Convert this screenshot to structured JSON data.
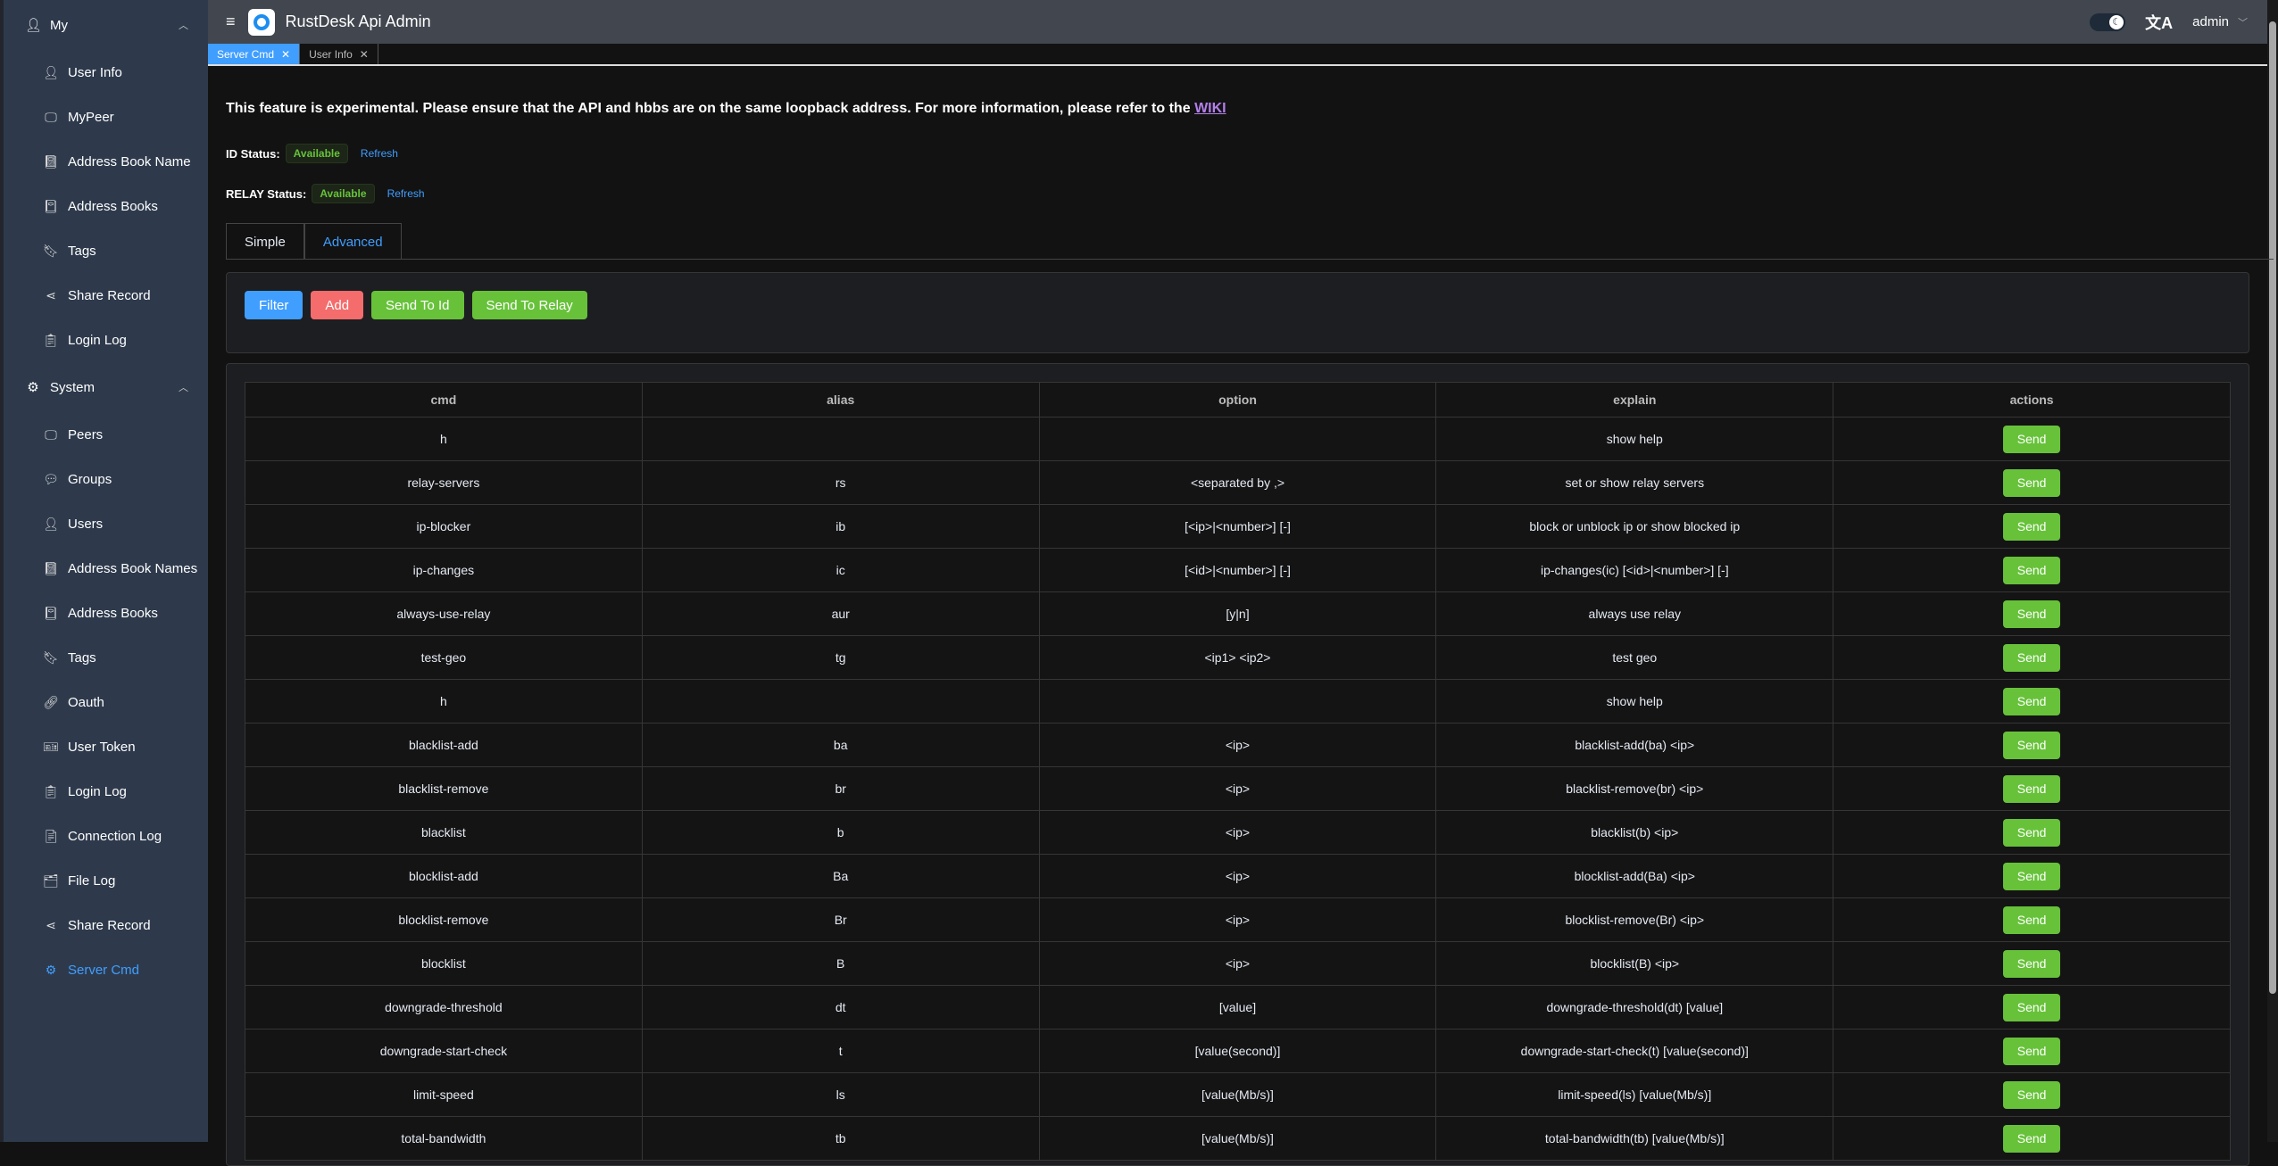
{
  "app": {
    "title": "RustDesk Api Admin",
    "user": "admin"
  },
  "sidebar": {
    "my": {
      "label": "My",
      "items": [
        "User Info",
        "MyPeer",
        "Address Book Name",
        "Address Books",
        "Tags",
        "Share Record",
        "Login Log"
      ]
    },
    "system": {
      "label": "System",
      "items": [
        "Peers",
        "Groups",
        "Users",
        "Address Book Names",
        "Address Books",
        "Tags",
        "Oauth",
        "User Token",
        "Login Log",
        "Connection Log",
        "File Log",
        "Share Record",
        "Server Cmd"
      ]
    },
    "active": "Server Cmd"
  },
  "page_tabs": [
    "Server Cmd",
    "User Info"
  ],
  "main": {
    "warning": "This feature is experimental. Please ensure that the API and hbbs are on the same loopback address. For more information, please refer to the",
    "wiki_link": "WIKI",
    "id_status_label": "ID Status:",
    "id_status": "Available",
    "relay_status_label": "RELAY Status:",
    "relay_status": "Available",
    "refresh": "Refresh",
    "tabs": [
      "Simple",
      "Advanced"
    ],
    "active_tab": "Advanced",
    "buttons": {
      "filter": "Filter",
      "add": "Add",
      "send_to_id": "Send To Id",
      "send_to_relay": "Send To Relay"
    },
    "table": {
      "columns": [
        "cmd",
        "alias",
        "option",
        "explain",
        "actions"
      ],
      "action_label": "Send",
      "rows": [
        [
          "h",
          "",
          "",
          "show help"
        ],
        [
          "relay-servers",
          "rs",
          "<separated by ,>",
          "set or show relay servers"
        ],
        [
          "ip-blocker",
          "ib",
          "[<ip>|<number>] [-]",
          "block or unblock ip or show blocked ip"
        ],
        [
          "ip-changes",
          "ic",
          "[<id>|<number>] [-]",
          "ip-changes(ic) [<id>|<number>] [-]"
        ],
        [
          "always-use-relay",
          "aur",
          "[y|n]",
          "always use relay"
        ],
        [
          "test-geo",
          "tg",
          "<ip1> <ip2>",
          "test geo"
        ],
        [
          "h",
          "",
          "",
          "show help"
        ],
        [
          "blacklist-add",
          "ba",
          "<ip>",
          "blacklist-add(ba) <ip>"
        ],
        [
          "blacklist-remove",
          "br",
          "<ip>",
          "blacklist-remove(br) <ip>"
        ],
        [
          "blacklist",
          "b",
          "<ip>",
          "blacklist(b) <ip>"
        ],
        [
          "blocklist-add",
          "Ba",
          "<ip>",
          "blocklist-add(Ba) <ip>"
        ],
        [
          "blocklist-remove",
          "Br",
          "<ip>",
          "blocklist-remove(Br) <ip>"
        ],
        [
          "blocklist",
          "B",
          "<ip>",
          "blocklist(B) <ip>"
        ],
        [
          "downgrade-threshold",
          "dt",
          "[value]",
          "downgrade-threshold(dt) [value]"
        ],
        [
          "downgrade-start-check",
          "t",
          "[value(second)]",
          "downgrade-start-check(t) [value(second)]"
        ],
        [
          "limit-speed",
          "ls",
          "[value(Mb/s)]",
          "limit-speed(ls) [value(Mb/s)]"
        ],
        [
          "total-bandwidth",
          "tb",
          "[value(Mb/s)]",
          "total-bandwidth(tb) [value(Mb/s)]"
        ]
      ]
    }
  }
}
